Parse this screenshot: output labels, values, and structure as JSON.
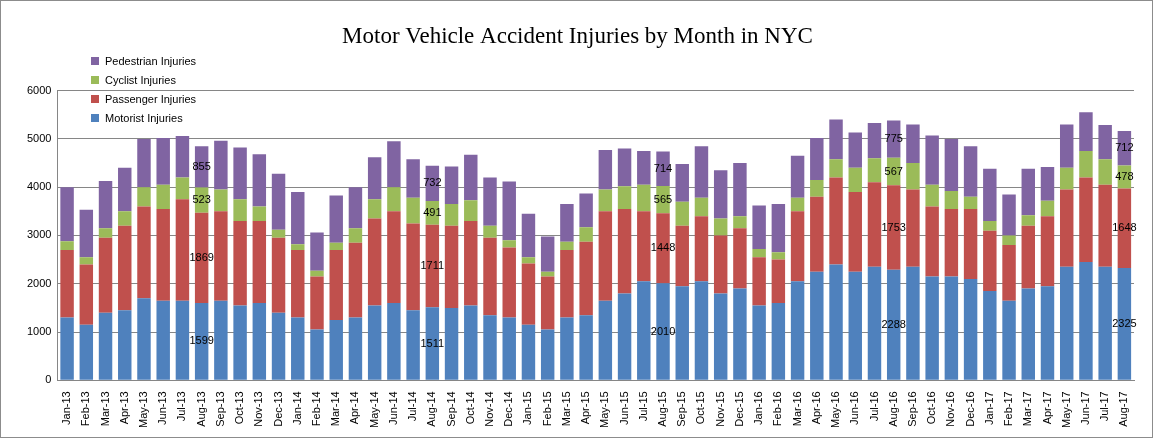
{
  "chart_data": {
    "type": "bar",
    "title": "Motor Vehicle Accident Injuries by Month in NYC",
    "stacked": true,
    "grid": true,
    "legend": "upper left",
    "data_labels": true,
    "ylim": [
      0,
      6000
    ],
    "yticks": [
      0,
      1000,
      2000,
      3000,
      4000,
      5000,
      6000
    ],
    "categories": [
      "Jan-13",
      "Feb-13",
      "Mar-13",
      "Apr-13",
      "May-13",
      "Jun-13",
      "Jul-13",
      "Aug-13",
      "Sep-13",
      "Oct-13",
      "Nov-13",
      "Dec-13",
      "Jan-14",
      "Feb-14",
      "Mar-14",
      "Apr-14",
      "May-14",
      "Jun-14",
      "Jul-14",
      "Aug-14",
      "Sep-14",
      "Oct-14",
      "Nov-14",
      "Dec-14",
      "Jan-15",
      "Feb-15",
      "Mar-15",
      "Apr-15",
      "May-15",
      "Jun-15",
      "Jul-15",
      "Aug-15",
      "Sep-15",
      "Oct-15",
      "Nov-15",
      "Dec-15",
      "Jan-16",
      "Feb-16",
      "Mar-16",
      "Apr-16",
      "May-16",
      "Jun-16",
      "Jul-16",
      "Aug-16",
      "Sep-16",
      "Oct-16",
      "Nov-16",
      "Dec-16",
      "Jan-17",
      "Feb-17",
      "Mar-17",
      "Apr-17",
      "May-17",
      "Jun-17",
      "Jul-17",
      "Aug-17"
    ],
    "series": [
      {
        "name": "Motorist Injuries",
        "color": "#4f81bd",
        "values": [
          1300,
          1150,
          1400,
          1450,
          1700,
          1650,
          1650,
          1599,
          1650,
          1550,
          1600,
          1400,
          1300,
          1050,
          1250,
          1300,
          1550,
          1600,
          1450,
          1511,
          1500,
          1550,
          1350,
          1300,
          1150,
          1050,
          1300,
          1350,
          1650,
          1800,
          2050,
          2010,
          1950,
          2050,
          1800,
          1900,
          1550,
          1600,
          2050,
          2250,
          2400,
          2250,
          2350,
          2288,
          2350,
          2150,
          2150,
          2100,
          1850,
          1650,
          1900,
          1950,
          2350,
          2450,
          2350,
          2325
        ],
        "value_labels": [
          null,
          null,
          null,
          null,
          null,
          null,
          null,
          "1599",
          null,
          null,
          null,
          null,
          null,
          null,
          null,
          null,
          null,
          null,
          null,
          "1511",
          null,
          null,
          null,
          null,
          null,
          null,
          null,
          null,
          null,
          null,
          null,
          "2010",
          null,
          null,
          null,
          null,
          null,
          null,
          null,
          null,
          null,
          null,
          null,
          "2288",
          null,
          null,
          null,
          null,
          null,
          null,
          null,
          null,
          null,
          null,
          null,
          "2325"
        ]
      },
      {
        "name": "Passenger Injuries",
        "color": "#c0504d",
        "values": [
          1400,
          1250,
          1550,
          1750,
          1900,
          1900,
          2100,
          1869,
          1850,
          1750,
          1700,
          1550,
          1400,
          1100,
          1450,
          1550,
          1800,
          1900,
          1800,
          1711,
          1700,
          1750,
          1600,
          1450,
          1270,
          1100,
          1400,
          1520,
          1850,
          1750,
          1450,
          1448,
          1250,
          1350,
          1200,
          1250,
          1000,
          900,
          1450,
          1550,
          1800,
          1650,
          1750,
          1753,
          1600,
          1450,
          1400,
          1450,
          1250,
          1150,
          1300,
          1450,
          1600,
          1750,
          1700,
          1648
        ],
        "value_labels": [
          null,
          null,
          null,
          null,
          null,
          null,
          null,
          "1869",
          null,
          null,
          null,
          null,
          null,
          null,
          null,
          null,
          null,
          null,
          null,
          "1711",
          null,
          null,
          null,
          null,
          null,
          null,
          null,
          null,
          null,
          null,
          null,
          "1448",
          null,
          null,
          null,
          null,
          null,
          null,
          null,
          null,
          null,
          null,
          null,
          "1753",
          null,
          null,
          null,
          null,
          null,
          null,
          null,
          null,
          null,
          null,
          null,
          "1648"
        ]
      },
      {
        "name": "Cyclist Injuries",
        "color": "#9bbb59",
        "values": [
          180,
          150,
          200,
          300,
          400,
          500,
          450,
          523,
          450,
          450,
          300,
          170,
          120,
          120,
          150,
          300,
          400,
          500,
          530,
          491,
          450,
          430,
          250,
          150,
          130,
          100,
          170,
          300,
          450,
          470,
          550,
          565,
          500,
          380,
          350,
          250,
          170,
          150,
          280,
          350,
          380,
          500,
          500,
          567,
          550,
          450,
          370,
          250,
          200,
          200,
          220,
          320,
          450,
          550,
          530,
          478
        ],
        "value_labels": [
          null,
          null,
          null,
          null,
          null,
          null,
          null,
          "523",
          null,
          null,
          null,
          null,
          null,
          null,
          null,
          null,
          null,
          null,
          null,
          "491",
          null,
          null,
          null,
          null,
          null,
          null,
          null,
          null,
          null,
          null,
          null,
          "565",
          null,
          null,
          null,
          null,
          null,
          null,
          null,
          null,
          null,
          null,
          null,
          "567",
          null,
          null,
          null,
          null,
          null,
          null,
          null,
          null,
          null,
          null,
          null,
          "478"
        ]
      },
      {
        "name": "Pedestrian Injuries",
        "color": "#8064a2",
        "values": [
          1120,
          980,
          980,
          900,
          1000,
          970,
          860,
          855,
          1010,
          1070,
          1080,
          1160,
          1080,
          790,
          980,
          850,
          870,
          950,
          800,
          732,
          780,
          940,
          1000,
          1220,
          900,
          730,
          780,
          700,
          820,
          780,
          700,
          714,
          780,
          1070,
          1000,
          1100,
          900,
          1000,
          870,
          870,
          820,
          730,
          730,
          775,
          800,
          1020,
          1080,
          1050,
          1080,
          850,
          960,
          700,
          900,
          800,
          710,
          712
        ],
        "value_labels": [
          null,
          null,
          null,
          null,
          null,
          null,
          null,
          "855",
          null,
          null,
          null,
          null,
          null,
          null,
          null,
          null,
          null,
          null,
          null,
          "732",
          null,
          null,
          null,
          null,
          null,
          null,
          null,
          null,
          null,
          null,
          null,
          "714",
          null,
          null,
          null,
          null,
          null,
          null,
          null,
          null,
          null,
          null,
          null,
          "775",
          null,
          null,
          null,
          null,
          null,
          null,
          null,
          null,
          null,
          null,
          null,
          "712"
        ]
      }
    ]
  }
}
